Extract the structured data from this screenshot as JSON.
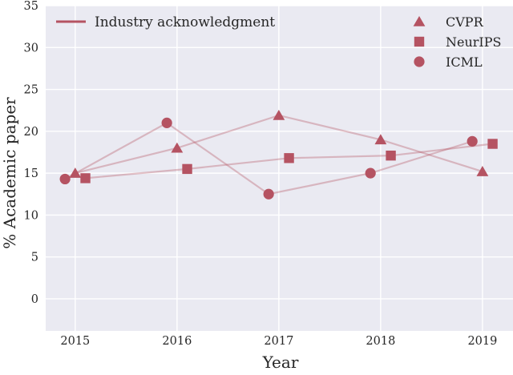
{
  "figure": {
    "background": "#ffffff",
    "axes_background": "#eaeaf2",
    "grid_color": "#ffffff",
    "text_color": "#262626",
    "accent_color": "#b55362",
    "series_line_opacity": 0.35
  },
  "chart_data": {
    "type": "scatter",
    "title": "",
    "xlabel": "Year",
    "ylabel": "% Academic paper",
    "grid": true,
    "legend_positions": {
      "line_legend": "upper-left-inside",
      "series_legend": "upper-right-inside"
    },
    "xlim": [
      2014.71,
      2019.3
    ],
    "ylim": [
      -3.83,
      35
    ],
    "x_ticks": [
      2015,
      2016,
      2017,
      2018,
      2019
    ],
    "y_ticks": [
      0,
      5,
      10,
      15,
      20,
      25,
      30,
      35
    ],
    "years": [
      2015,
      2016,
      2017,
      2018,
      2019
    ],
    "line_legend": {
      "label": "Industry acknowledgment"
    },
    "series": [
      {
        "name": "CVPR",
        "marker": "triangle",
        "x_offset": 0.0,
        "values": [
          15.0,
          18.0,
          21.9,
          19.0,
          15.2
        ]
      },
      {
        "name": "NeurIPS",
        "marker": "square",
        "x_offset": 0.1,
        "values": [
          14.4,
          15.5,
          16.8,
          17.1,
          18.5
        ]
      },
      {
        "name": "ICML",
        "marker": "circle",
        "x_offset": -0.1,
        "values": [
          14.3,
          21.0,
          12.5,
          15.0,
          18.8
        ]
      }
    ]
  }
}
